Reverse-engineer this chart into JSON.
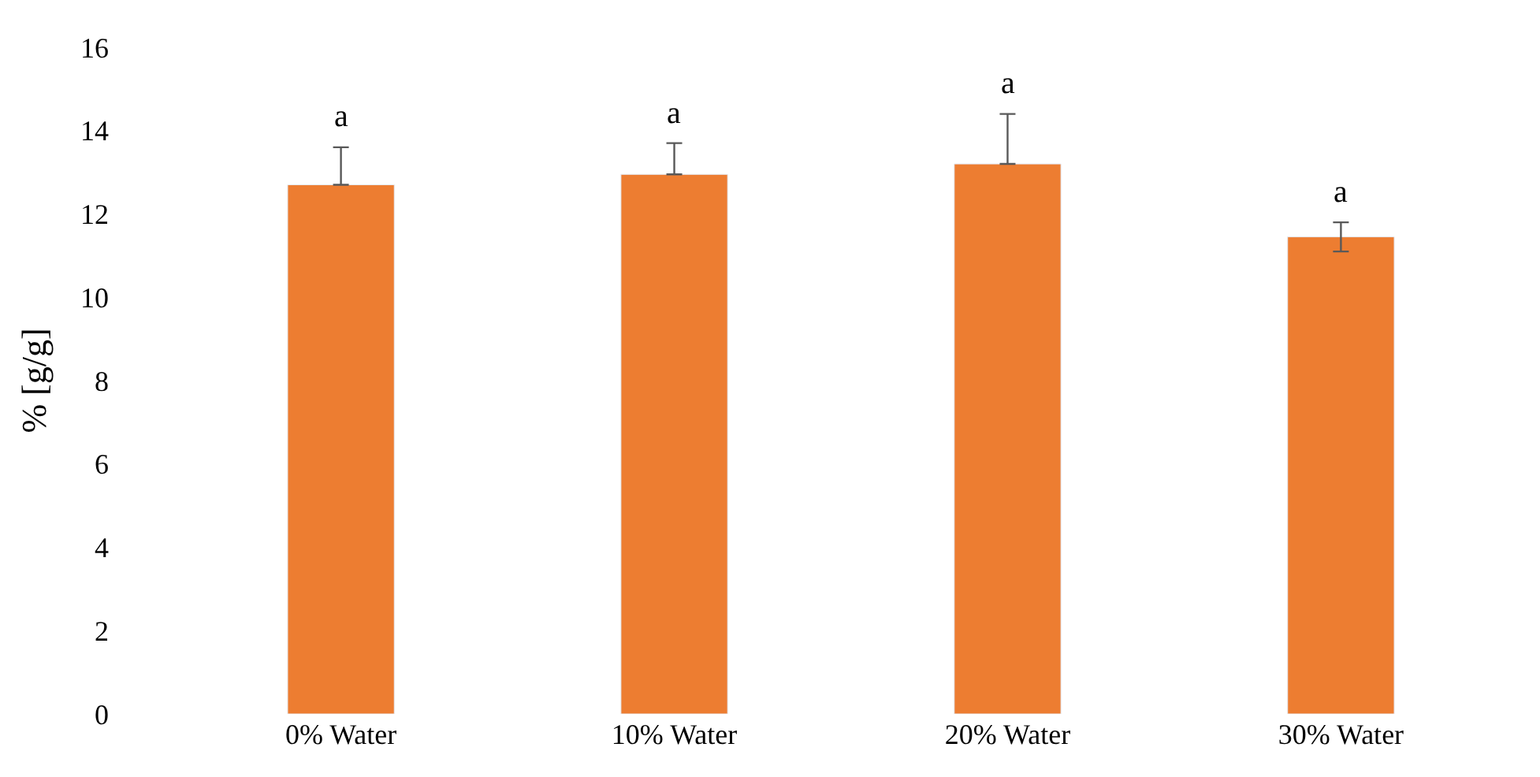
{
  "chart_data": {
    "type": "bar",
    "ylabel": "% [g/g]",
    "categories": [
      "0% Water",
      "10% Water",
      "20% Water",
      "30% Water"
    ],
    "values": [
      12.7,
      12.95,
      13.2,
      11.45
    ],
    "errors": [
      [
        12.7,
        13.6
      ],
      [
        12.95,
        13.7
      ],
      [
        13.2,
        14.4
      ],
      [
        11.1,
        11.8
      ]
    ],
    "color": "#ed7d31",
    "ylim": [
      0,
      16
    ],
    "yticks": [
      0,
      2,
      4,
      6,
      8,
      10,
      12,
      14,
      16
    ],
    "annotations": [
      "a",
      "a",
      "a",
      "a"
    ]
  }
}
